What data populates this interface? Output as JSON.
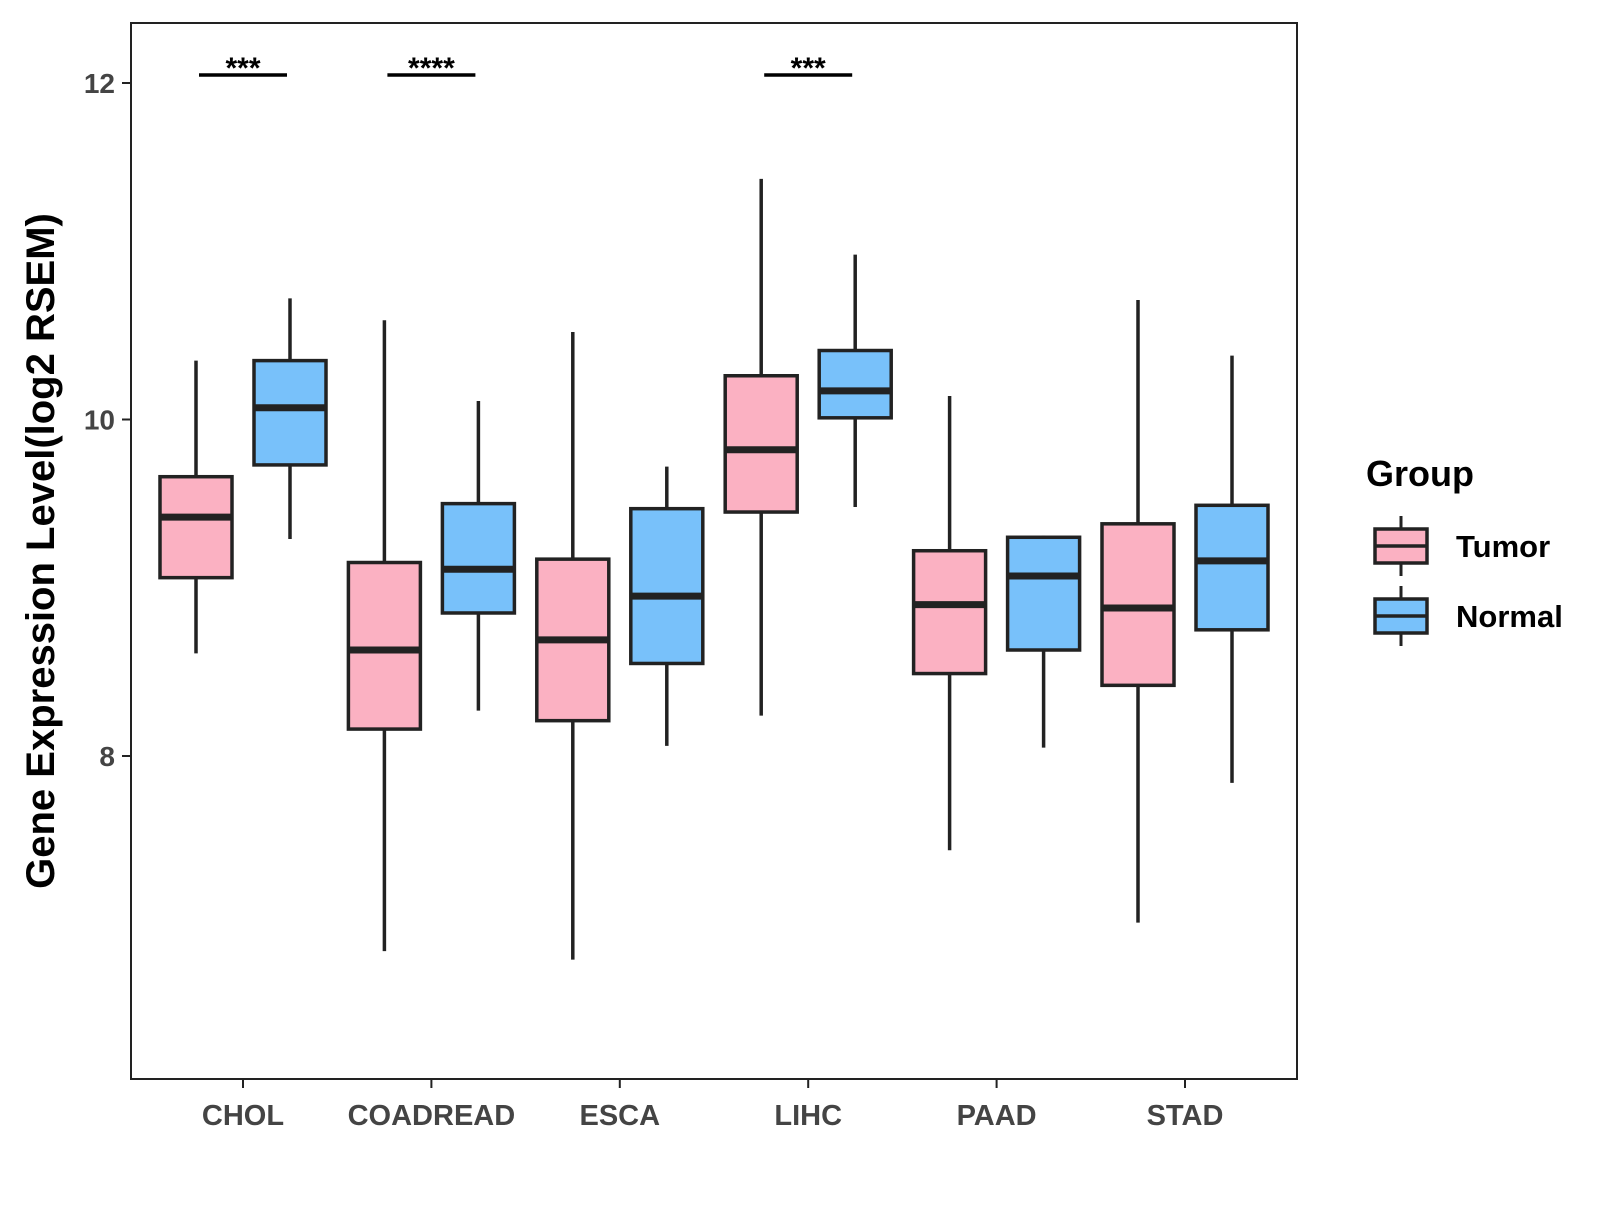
{
  "chart_data": {
    "type": "boxplot",
    "title": "",
    "xlabel": "",
    "ylabel": "Gene Expression Level(log2 RSEM)",
    "ylim": [
      6.1,
      12.35
    ],
    "yticks": [
      8,
      10,
      12
    ],
    "ytick_labels": [
      "8",
      "10",
      "12"
    ],
    "grid": false,
    "categories": [
      "CHOL",
      "COADREAD",
      "ESCA",
      "LIHC",
      "PAAD",
      "STAD"
    ],
    "legend": {
      "title": "Group",
      "placement": "right",
      "entries": [
        "Tumor",
        "Normal"
      ]
    },
    "colors": {
      "Tumor": "#fbb1c2",
      "Normal": "#78c1fa",
      "stroke": "#222222"
    },
    "series": [
      {
        "name": "Tumor",
        "boxes": [
          {
            "min": 8.61,
            "q1": 9.06,
            "median": 9.42,
            "q3": 9.66,
            "max": 10.35
          },
          {
            "min": 6.84,
            "q1": 8.16,
            "median": 8.63,
            "q3": 9.15,
            "max": 10.59
          },
          {
            "min": 6.79,
            "q1": 8.21,
            "median": 8.69,
            "q3": 9.17,
            "max": 10.52
          },
          {
            "min": 8.24,
            "q1": 9.45,
            "median": 9.82,
            "q3": 10.26,
            "max": 11.43
          },
          {
            "min": 7.44,
            "q1": 8.49,
            "median": 8.9,
            "q3": 9.22,
            "max": 10.14
          },
          {
            "min": 7.01,
            "q1": 8.42,
            "median": 8.88,
            "q3": 9.38,
            "max": 10.71
          }
        ]
      },
      {
        "name": "Normal",
        "boxes": [
          {
            "min": 9.29,
            "q1": 9.73,
            "median": 10.07,
            "q3": 10.35,
            "max": 10.72
          },
          {
            "min": 8.27,
            "q1": 8.85,
            "median": 9.11,
            "q3": 9.5,
            "max": 10.11
          },
          {
            "min": 8.06,
            "q1": 8.55,
            "median": 8.95,
            "q3": 9.47,
            "max": 9.72
          },
          {
            "min": 9.48,
            "q1": 10.01,
            "median": 10.17,
            "q3": 10.41,
            "max": 10.98
          },
          {
            "min": 8.05,
            "q1": 8.63,
            "median": 9.07,
            "q3": 9.3,
            "max": 9.31
          },
          {
            "min": 7.84,
            "q1": 8.75,
            "median": 9.16,
            "q3": 9.49,
            "max": 10.38
          }
        ]
      }
    ],
    "annotations": [
      {
        "category": "CHOL",
        "text": "***"
      },
      {
        "category": "COADREAD",
        "text": "****"
      },
      {
        "category": "LIHC",
        "text": "***"
      }
    ]
  }
}
